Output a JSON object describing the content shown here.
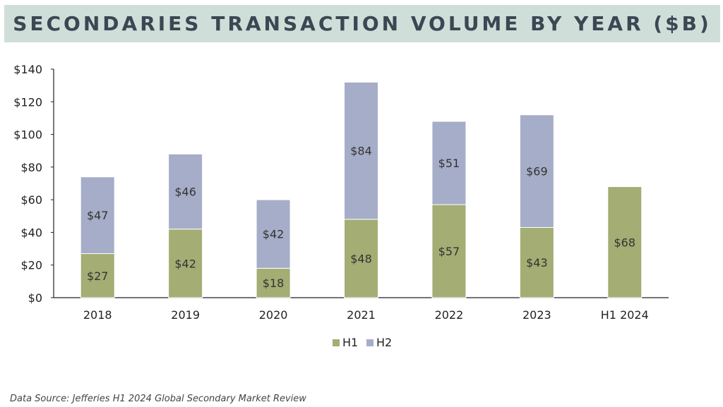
{
  "title": "SECONDARIES TRANSACTION VOLUME BY YEAR ($B)",
  "source": "Data Source:  Jefferies H1 2024 Global Secondary Market Review",
  "colors": {
    "h1": "#a3ad74",
    "h2": "#a6adc8",
    "title_bg": "#cfded9",
    "title_text": "#3b4752"
  },
  "chart_data": {
    "type": "bar",
    "stacked": true,
    "categories": [
      "2018",
      "2019",
      "2020",
      "2021",
      "2022",
      "2023",
      "H1 2024"
    ],
    "series": [
      {
        "name": "H1",
        "values": [
          27,
          42,
          18,
          48,
          57,
          43,
          68
        ],
        "labels": [
          "$27",
          "$42",
          "$18",
          "$48",
          "$57",
          "$43",
          "$68"
        ]
      },
      {
        "name": "H2",
        "values": [
          47,
          46,
          42,
          84,
          51,
          69,
          null
        ],
        "labels": [
          "$47",
          "$46",
          "$42",
          "$84",
          "$51",
          "$69",
          null
        ]
      }
    ],
    "ylim": [
      0,
      140
    ],
    "yticks": [
      0,
      20,
      40,
      60,
      80,
      100,
      120,
      140
    ],
    "ytick_labels": [
      "$0",
      "$20",
      "$40",
      "$60",
      "$80",
      "$100",
      "$120",
      "$140"
    ],
    "legend": [
      "H1",
      "H2"
    ],
    "legend_position": "bottom",
    "grid": false
  }
}
